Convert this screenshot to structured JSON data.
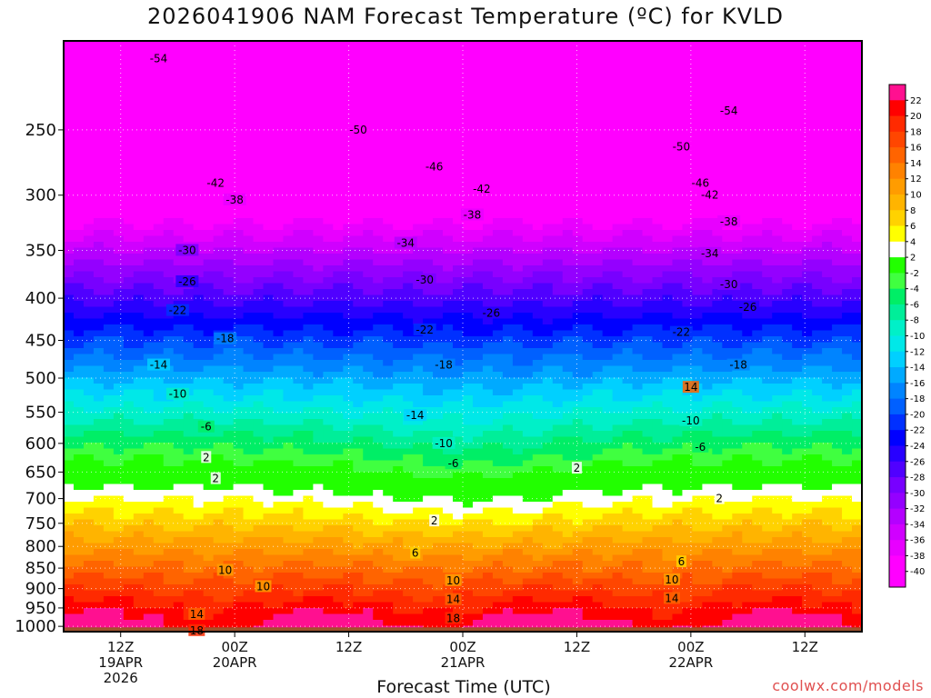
{
  "chart_data": {
    "type": "heatmap",
    "title": "2026041906 NAM Forecast Temperature (ºC) for KVLD",
    "xlabel": "Forecast Time (UTC)",
    "ylabel": "",
    "yaxis": "pressure (hPa), inverted",
    "ylim": [
      1015,
      195
    ],
    "yticks": [
      250,
      300,
      350,
      400,
      450,
      500,
      550,
      600,
      650,
      700,
      750,
      800,
      850,
      900,
      950,
      1000
    ],
    "xlim_hours": [
      0,
      84
    ],
    "xticks": [
      {
        "hour": 6,
        "lines": [
          "12Z",
          "19APR",
          "2026"
        ]
      },
      {
        "hour": 18,
        "lines": [
          "00Z",
          "20APR"
        ]
      },
      {
        "hour": 30,
        "lines": [
          "12Z"
        ]
      },
      {
        "hour": 42,
        "lines": [
          "00Z",
          "21APR"
        ]
      },
      {
        "hour": 54,
        "lines": [
          "12Z"
        ]
      },
      {
        "hour": 66,
        "lines": [
          "00Z",
          "22APR"
        ]
      },
      {
        "hour": 78,
        "lines": [
          "12Z"
        ]
      }
    ],
    "colorbar_levels": [
      22,
      20,
      18,
      16,
      14,
      12,
      10,
      8,
      6,
      4,
      2,
      -2,
      -4,
      -6,
      -8,
      -10,
      -12,
      -14,
      -16,
      -18,
      -20,
      -22,
      -24,
      -26,
      -28,
      -30,
      -32,
      -34,
      -36,
      -38,
      -40
    ],
    "colorbar_colors": [
      "#ff1090",
      "#ff0000",
      "#ff2a00",
      "#ff4600",
      "#ff6400",
      "#ff8200",
      "#ff9c00",
      "#ffb400",
      "#ffd200",
      "#ffff00",
      "#ffffff",
      "#22ff00",
      "#40ff40",
      "#00ee66",
      "#00ee99",
      "#00f0c8",
      "#00e8e8",
      "#00d0ff",
      "#00aaff",
      "#0084ff",
      "#0060ff",
      "#0030ff",
      "#0000ff",
      "#2800ff",
      "#5000ff",
      "#7800ff",
      "#9400ff",
      "#b400ff",
      "#d000ff",
      "#e800ff",
      "#ff00ff",
      "#ff00ff"
    ],
    "contour_labels": [
      {
        "v": "-54",
        "h": 10,
        "p": 205
      },
      {
        "v": "-54",
        "h": 70,
        "p": 237
      },
      {
        "v": "-50",
        "h": 31,
        "p": 250
      },
      {
        "v": "-50",
        "h": 65,
        "p": 262
      },
      {
        "v": "-46",
        "h": 39,
        "p": 277
      },
      {
        "v": "-46",
        "h": 67,
        "p": 290
      },
      {
        "v": "-42",
        "h": 16,
        "p": 290
      },
      {
        "v": "-42",
        "h": 44,
        "p": 295
      },
      {
        "v": "-42",
        "h": 68,
        "p": 300
      },
      {
        "v": "-38",
        "h": 18,
        "p": 304
      },
      {
        "v": "-38",
        "h": 43,
        "p": 317
      },
      {
        "v": "-38",
        "h": 70,
        "p": 323
      },
      {
        "v": "-34",
        "h": 36,
        "p": 343
      },
      {
        "v": "-34",
        "h": 68,
        "p": 353
      },
      {
        "v": "-30",
        "h": 13,
        "p": 350
      },
      {
        "v": "-30",
        "h": 38,
        "p": 380
      },
      {
        "v": "-30",
        "h": 70,
        "p": 385
      },
      {
        "v": "-26",
        "h": 13,
        "p": 382
      },
      {
        "v": "-26",
        "h": 45,
        "p": 417
      },
      {
        "v": "-26",
        "h": 72,
        "p": 410
      },
      {
        "v": "-22",
        "h": 12,
        "p": 414
      },
      {
        "v": "-22",
        "h": 38,
        "p": 437
      },
      {
        "v": "-22",
        "h": 65,
        "p": 440
      },
      {
        "v": "-18",
        "h": 17,
        "p": 448
      },
      {
        "v": "-18",
        "h": 40,
        "p": 482
      },
      {
        "v": "-18",
        "h": 71,
        "p": 482
      },
      {
        "v": "-14",
        "h": 10,
        "p": 482
      },
      {
        "v": "-14",
        "h": 37,
        "p": 555
      },
      {
        "v": "14",
        "h": 66,
        "p": 513
      },
      {
        "v": "-10",
        "h": 12,
        "p": 523
      },
      {
        "v": "-10",
        "h": 40,
        "p": 600
      },
      {
        "v": "-10",
        "h": 66,
        "p": 563
      },
      {
        "v": "-6",
        "h": 15,
        "p": 573
      },
      {
        "v": "-6",
        "h": 41,
        "p": 635
      },
      {
        "v": "-6",
        "h": 67,
        "p": 606
      },
      {
        "v": "2",
        "h": 15,
        "p": 624
      },
      {
        "v": "2",
        "h": 16,
        "p": 662
      },
      {
        "v": "2",
        "h": 54,
        "p": 643
      },
      {
        "v": "2",
        "h": 39,
        "p": 745
      },
      {
        "v": "2",
        "h": 69,
        "p": 700
      },
      {
        "v": "6",
        "h": 37,
        "p": 815
      },
      {
        "v": "6",
        "h": 65,
        "p": 835
      },
      {
        "v": "10",
        "h": 17,
        "p": 855
      },
      {
        "v": "10",
        "h": 21,
        "p": 895
      },
      {
        "v": "10",
        "h": 41,
        "p": 880
      },
      {
        "v": "10",
        "h": 64,
        "p": 878
      },
      {
        "v": "14",
        "h": 14,
        "p": 967
      },
      {
        "v": "14",
        "h": 41,
        "p": 928
      },
      {
        "v": "14",
        "h": 64,
        "p": 925
      },
      {
        "v": "18",
        "h": 41,
        "p": 978
      },
      {
        "v": "18",
        "h": 14,
        "p": 1012
      }
    ]
  },
  "credit": "coolwx.com/models"
}
